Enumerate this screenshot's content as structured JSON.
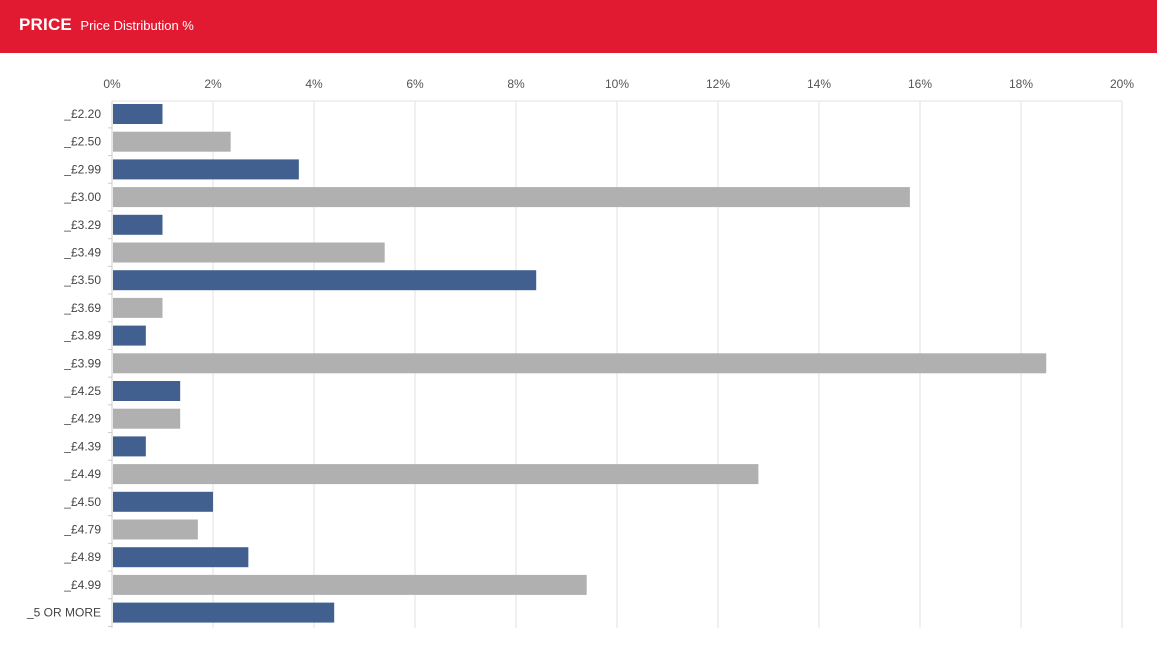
{
  "header": {
    "title": "PRICE",
    "subtitle": "Price Distribution %"
  },
  "colors": {
    "header_bg": "#e11a32",
    "series_blue": "#42608f",
    "series_grey": "#b0b0b0",
    "grid": "#e2e2e2"
  },
  "chart_data": {
    "type": "bar",
    "orientation": "horizontal",
    "title": "Price Distribution %",
    "xlabel": "",
    "ylabel": "",
    "xlim": [
      0,
      20
    ],
    "x_ticks": [
      "0%",
      "2%",
      "4%",
      "6%",
      "8%",
      "10%",
      "12%",
      "14%",
      "16%",
      "18%",
      "20%"
    ],
    "x_axis_position": "top",
    "grid": true,
    "legend": "none",
    "categories": [
      "_£2.20",
      "_£2.50",
      "_£2.99",
      "_£3.00",
      "_£3.29",
      "_£3.49",
      "_£3.50",
      "_£3.69",
      "_£3.89",
      "_£3.99",
      "_£4.25",
      "_£4.29",
      "_£4.39",
      "_£4.49",
      "_£4.50",
      "_£4.79",
      "_£4.89",
      "_£4.99",
      "_5 OR MORE"
    ],
    "values": [
      1.0,
      2.35,
      3.7,
      15.8,
      1.0,
      5.4,
      8.4,
      1.0,
      0.67,
      18.5,
      1.35,
      1.35,
      0.67,
      12.8,
      2.0,
      1.7,
      2.7,
      9.4,
      4.4
    ],
    "bar_colors": [
      "#42608f",
      "#b0b0b0",
      "#42608f",
      "#b0b0b0",
      "#42608f",
      "#b0b0b0",
      "#42608f",
      "#b0b0b0",
      "#42608f",
      "#b0b0b0",
      "#42608f",
      "#b0b0b0",
      "#42608f",
      "#b0b0b0",
      "#42608f",
      "#b0b0b0",
      "#42608f",
      "#b0b0b0",
      "#42608f"
    ]
  }
}
